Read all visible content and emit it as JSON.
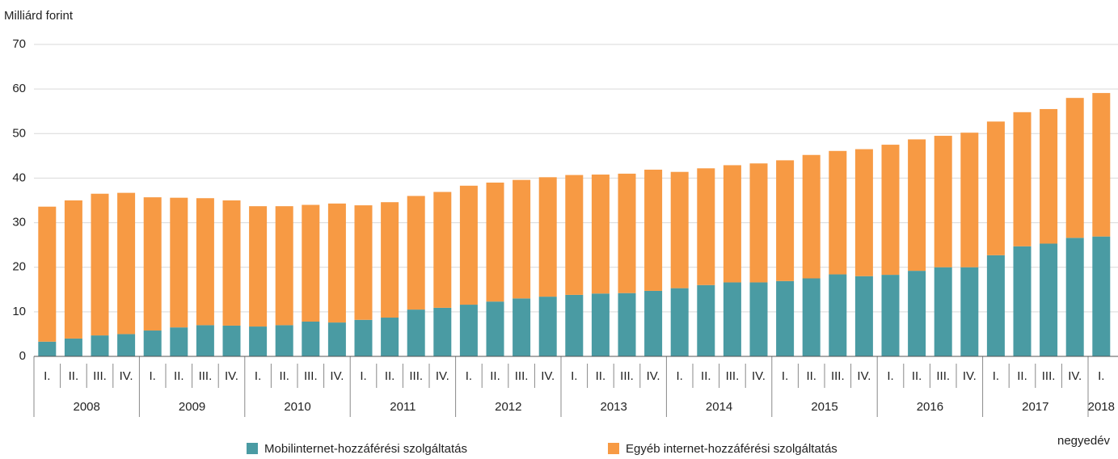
{
  "chart_data": {
    "type": "stacked_bar",
    "y_axis_label": "Milliárd forint",
    "x_axis_label": "negyedév",
    "groups": [
      {
        "name": "2008",
        "categories": [
          "I.",
          "II.",
          "III.",
          "IV."
        ]
      },
      {
        "name": "2009",
        "categories": [
          "I.",
          "II.",
          "III.",
          "IV."
        ]
      },
      {
        "name": "2010",
        "categories": [
          "I.",
          "II.",
          "III.",
          "IV."
        ]
      },
      {
        "name": "2011",
        "categories": [
          "I.",
          "II.",
          "III.",
          "IV."
        ]
      },
      {
        "name": "2012",
        "categories": [
          "I.",
          "II.",
          "III.",
          "IV."
        ]
      },
      {
        "name": "2013",
        "categories": [
          "I.",
          "II.",
          "III.",
          "IV."
        ]
      },
      {
        "name": "2014",
        "categories": [
          "I.",
          "II.",
          "III.",
          "IV."
        ]
      },
      {
        "name": "2015",
        "categories": [
          "I.",
          "II.",
          "III.",
          "IV."
        ]
      },
      {
        "name": "2016",
        "categories": [
          "I.",
          "II.",
          "III.",
          "IV."
        ]
      },
      {
        "name": "2017",
        "categories": [
          "I.",
          "II.",
          "III.",
          "IV."
        ]
      },
      {
        "name": "2018",
        "categories": [
          "I."
        ]
      }
    ],
    "series": [
      {
        "name": "Mobilinternet-hozzáférési szolgáltatás",
        "color": "#4a9ba3",
        "values": [
          3.3,
          4.0,
          4.7,
          5.0,
          5.8,
          6.5,
          7.0,
          6.9,
          6.7,
          7.0,
          7.8,
          7.6,
          8.2,
          8.7,
          10.5,
          10.9,
          11.6,
          12.3,
          13.0,
          13.4,
          13.8,
          14.1,
          14.2,
          14.7,
          15.3,
          16.0,
          16.6,
          16.6,
          16.9,
          17.5,
          18.4,
          18.0,
          18.3,
          19.2,
          20.0,
          20.0,
          22.7,
          24.7,
          25.3,
          26.6,
          26.9
        ]
      },
      {
        "name": "Egyéb internet-hozzáférési szolgáltatás",
        "color": "#f79a44",
        "values": [
          30.3,
          31.0,
          31.8,
          31.7,
          29.9,
          29.1,
          28.5,
          28.1,
          27.0,
          26.7,
          26.2,
          26.7,
          25.7,
          25.9,
          25.5,
          26.0,
          26.7,
          26.7,
          26.6,
          26.8,
          26.9,
          26.7,
          26.8,
          27.2,
          26.1,
          26.2,
          26.3,
          26.7,
          27.1,
          27.7,
          27.7,
          28.5,
          29.2,
          29.5,
          29.5,
          30.2,
          30.0,
          30.1,
          30.2,
          31.4,
          32.2
        ]
      }
    ],
    "ylim": [
      0,
      70
    ],
    "yticks": [
      0,
      10,
      20,
      30,
      40,
      50,
      60,
      70
    ],
    "grid": true
  }
}
